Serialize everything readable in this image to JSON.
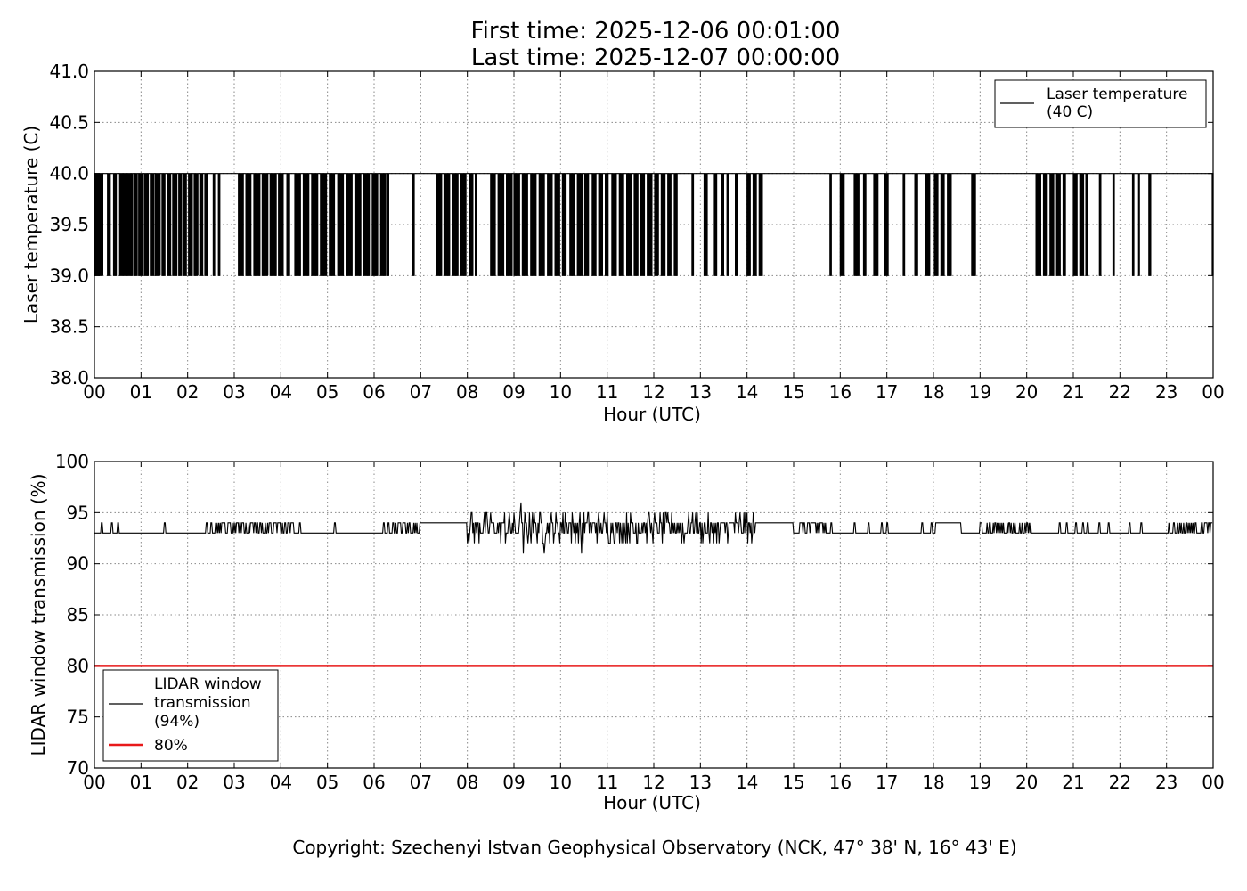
{
  "title": {
    "line1": "First time: 2025-12-06 00:01:00",
    "line2": "Last time: 2025-12-07 00:00:00"
  },
  "copyright": "Copyright: Szechenyi Istvan Geophysical Observatory (NCK, 47° 38' N, 16° 43' E)",
  "colors": {
    "line": "#000000",
    "threshold": "#e8191a",
    "grid": "#888888"
  },
  "chart_data": [
    {
      "type": "line",
      "xlabel": "Hour (UTC)",
      "ylabel": "Laser temperature (C)",
      "xlim": [
        0,
        24
      ],
      "ylim": [
        38.0,
        41.0
      ],
      "x_ticks": [
        "00",
        "01",
        "02",
        "03",
        "04",
        "05",
        "06",
        "07",
        "08",
        "09",
        "10",
        "11",
        "12",
        "13",
        "14",
        "15",
        "16",
        "17",
        "18",
        "19",
        "20",
        "21",
        "22",
        "23",
        "00"
      ],
      "y_ticks": [
        "38.0",
        "38.5",
        "39.0",
        "39.5",
        "40.0",
        "40.5",
        "41.0"
      ],
      "grid": true,
      "legend_position": "top-right",
      "series": [
        {
          "name": "Laser temperature\n(40 C)",
          "description": "Switches between 39.0 and 40.0 C; dense switching in dips segments",
          "baseline": 40.0,
          "dip_value": 39.0,
          "dips": [
            [
              0.0,
              0.18
            ],
            [
              0.28,
              0.35
            ],
            [
              0.41,
              0.48
            ],
            [
              0.54,
              0.66
            ],
            [
              0.7,
              0.81
            ],
            [
              0.84,
              0.92
            ],
            [
              0.95,
              1.04
            ],
            [
              1.07,
              1.16
            ],
            [
              1.2,
              1.28
            ],
            [
              1.31,
              1.41
            ],
            [
              1.45,
              1.52
            ],
            [
              1.56,
              1.64
            ],
            [
              1.68,
              1.77
            ],
            [
              1.81,
              1.87
            ],
            [
              1.91,
              1.98
            ],
            [
              2.02,
              2.1
            ],
            [
              2.14,
              2.22
            ],
            [
              2.26,
              2.33
            ],
            [
              2.37,
              2.42
            ],
            [
              2.55,
              2.58
            ],
            [
              2.66,
              2.69
            ],
            [
              3.09,
              3.2
            ],
            [
              3.25,
              3.37
            ],
            [
              3.42,
              3.55
            ],
            [
              3.6,
              3.72
            ],
            [
              3.77,
              3.9
            ],
            [
              3.95,
              4.05
            ],
            [
              4.13,
              4.2
            ],
            [
              4.3,
              4.42
            ],
            [
              4.48,
              4.6
            ],
            [
              4.66,
              4.79
            ],
            [
              4.85,
              4.98
            ],
            [
              5.04,
              5.16
            ],
            [
              5.22,
              5.34
            ],
            [
              5.4,
              5.53
            ],
            [
              5.59,
              5.72
            ],
            [
              5.78,
              5.9
            ],
            [
              5.96,
              6.08
            ],
            [
              6.14,
              6.25
            ],
            [
              6.28,
              6.32
            ],
            [
              6.83,
              6.86
            ],
            [
              7.35,
              7.45
            ],
            [
              7.5,
              7.62
            ],
            [
              7.68,
              7.8
            ],
            [
              7.86,
              7.98
            ],
            [
              8.05,
              8.12
            ],
            [
              8.17,
              8.2
            ],
            [
              8.5,
              8.6
            ],
            [
              8.66,
              8.78
            ],
            [
              8.84,
              8.96
            ],
            [
              9.0,
              9.12
            ],
            [
              9.18,
              9.3
            ],
            [
              9.36,
              9.48
            ],
            [
              9.54,
              9.66
            ],
            [
              9.72,
              9.82
            ],
            [
              9.88,
              9.98
            ],
            [
              10.04,
              10.12
            ],
            [
              10.2,
              10.3
            ],
            [
              10.36,
              10.46
            ],
            [
              10.52,
              10.6
            ],
            [
              10.68,
              10.76
            ],
            [
              10.82,
              10.9
            ],
            [
              10.96,
              11.02
            ],
            [
              11.1,
              11.2
            ],
            [
              11.26,
              11.36
            ],
            [
              11.42,
              11.52
            ],
            [
              11.58,
              11.66
            ],
            [
              11.72,
              11.8
            ],
            [
              11.86,
              11.96
            ],
            [
              12.02,
              12.1
            ],
            [
              12.16,
              12.24
            ],
            [
              12.3,
              12.38
            ],
            [
              12.44,
              12.5
            ],
            [
              12.82,
              12.85
            ],
            [
              13.08,
              13.15
            ],
            [
              13.3,
              13.35
            ],
            [
              13.45,
              13.5
            ],
            [
              13.57,
              13.6
            ],
            [
              13.75,
              13.8
            ],
            [
              14.0,
              14.07
            ],
            [
              14.13,
              14.2
            ],
            [
              14.26,
              14.33
            ],
            [
              15.78,
              15.81
            ],
            [
              16.0,
              16.09
            ],
            [
              16.3,
              16.4
            ],
            [
              16.5,
              16.55
            ],
            [
              16.72,
              16.81
            ],
            [
              16.96,
              17.04
            ],
            [
              17.35,
              17.38
            ],
            [
              17.6,
              17.66
            ],
            [
              17.84,
              17.92
            ],
            [
              18.02,
              18.1
            ],
            [
              18.16,
              18.24
            ],
            [
              18.3,
              18.38
            ],
            [
              18.82,
              18.9
            ],
            [
              20.2,
              20.3
            ],
            [
              20.36,
              20.44
            ],
            [
              20.5,
              20.58
            ],
            [
              20.64,
              20.72
            ],
            [
              20.78,
              20.84
            ],
            [
              21.0,
              21.08
            ],
            [
              21.14,
              21.22
            ],
            [
              21.27,
              21.3
            ],
            [
              21.56,
              21.59
            ],
            [
              21.85,
              21.88
            ],
            [
              22.27,
              22.3
            ],
            [
              22.4,
              22.43
            ],
            [
              22.62,
              22.66
            ],
            [
              23.98,
              24.0
            ]
          ]
        }
      ]
    },
    {
      "type": "line",
      "xlabel": "Hour (UTC)",
      "ylabel": "LIDAR window transmission (%)",
      "xlim": [
        0,
        24
      ],
      "ylim": [
        70,
        100
      ],
      "x_ticks": [
        "00",
        "01",
        "02",
        "03",
        "04",
        "05",
        "06",
        "07",
        "08",
        "09",
        "10",
        "11",
        "12",
        "13",
        "14",
        "15",
        "16",
        "17",
        "18",
        "19",
        "20",
        "21",
        "22",
        "23",
        "00"
      ],
      "y_ticks": [
        "70",
        "75",
        "80",
        "85",
        "90",
        "95",
        "100"
      ],
      "grid": true,
      "legend_position": "lower-left",
      "series": [
        {
          "name": "LIDAR window\ntransmission\n(94%)",
          "description": "Mostly 93-94%, noisy between 07 and 14 UTC with values from 91 to 96",
          "baseline": 93,
          "spikes": [
            [
              0.15,
              94
            ],
            [
              0.37,
              94
            ],
            [
              0.5,
              94
            ],
            [
              1.5,
              94
            ],
            [
              2.4,
              94
            ],
            [
              2.5,
              94
            ],
            [
              4.4,
              94
            ],
            [
              5.15,
              94
            ],
            [
              6.2,
              94
            ],
            [
              15.4,
              94
            ],
            [
              15.6,
              94
            ],
            [
              15.8,
              94
            ],
            [
              16.3,
              94
            ],
            [
              16.6,
              94
            ],
            [
              16.9,
              94
            ],
            [
              17.0,
              94
            ],
            [
              17.75,
              94
            ],
            [
              17.95,
              94
            ],
            [
              18.2,
              94
            ],
            [
              20.7,
              94
            ],
            [
              20.85,
              94
            ],
            [
              21.05,
              94
            ],
            [
              21.2,
              94
            ],
            [
              21.3,
              94
            ],
            [
              21.55,
              94
            ],
            [
              21.75,
              94
            ],
            [
              22.2,
              94
            ],
            [
              22.45,
              94
            ]
          ],
          "plateaus": [
            [
              7.0,
              8.0,
              94
            ],
            [
              18.05,
              18.6,
              94
            ],
            [
              14.2,
              15.3,
              94
            ]
          ],
          "noisy_ranges": [
            [
              2.6,
              4.3,
              93,
              94
            ],
            [
              6.3,
              7.0,
              93,
              94
            ],
            [
              8.0,
              14.2,
              92,
              95
            ],
            [
              15.0,
              15.7,
              93,
              94
            ],
            [
              19.0,
              20.1,
              93,
              94
            ],
            [
              23.0,
              24.0,
              93,
              94
            ]
          ],
          "extremes": [
            [
              9.15,
              96
            ],
            [
              9.2,
              91
            ],
            [
              9.65,
              91
            ],
            [
              10.45,
              91
            ],
            [
              11.65,
              92
            ],
            [
              12.65,
              92
            ],
            [
              13.2,
              92
            ],
            [
              13.4,
              92
            ],
            [
              8.1,
              95
            ],
            [
              8.5,
              95
            ],
            [
              8.8,
              95
            ],
            [
              9.4,
              95
            ],
            [
              9.8,
              95
            ],
            [
              10.1,
              95
            ],
            [
              10.6,
              95
            ],
            [
              11.0,
              95
            ],
            [
              11.5,
              95
            ],
            [
              11.9,
              95
            ],
            [
              12.3,
              95
            ],
            [
              12.9,
              95
            ],
            [
              13.85,
              95
            ],
            [
              14.0,
              95
            ]
          ]
        },
        {
          "name": "80%",
          "constant": 80
        }
      ]
    }
  ]
}
